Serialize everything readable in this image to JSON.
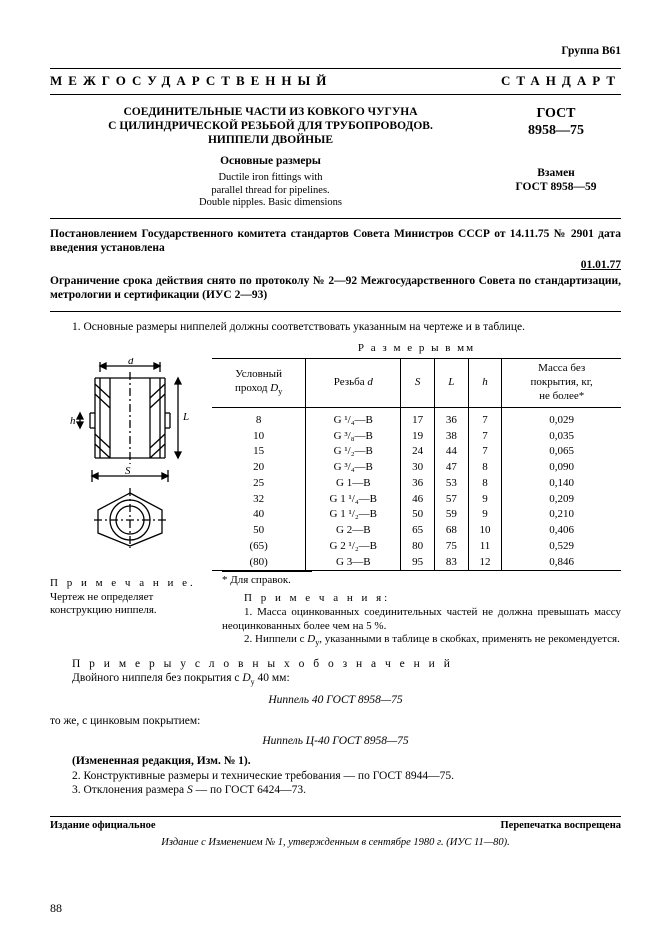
{
  "header": {
    "group": "Группа В61"
  },
  "banner": {
    "left": "МЕЖГОСУДАРСТВЕННЫЙ",
    "right": "СТАНДАРТ"
  },
  "title": {
    "line1": "СОЕДИНИТЕЛЬНЫЕ ЧАСТИ ИЗ КОВКОГО ЧУГУНА",
    "line2": "С ЦИЛИНДРИЧЕСКОЙ РЕЗЬБОЙ ДЛЯ ТРУБОПРОВОДОВ.",
    "line3": "НИППЕЛИ ДВОЙНЫЕ",
    "sub": "Основные размеры",
    "en1": "Ductile iron fittings with",
    "en2": "parallel thread for pipelines.",
    "en3": "Double nipples. Basic dimensions"
  },
  "std": {
    "name": "ГОСТ",
    "num": "8958—75",
    "repl1": "Взамен",
    "repl2": "ГОСТ 8958—59"
  },
  "decree": {
    "p1": "Постановлением Государственного комитета стандартов Совета Министров СССР от 14.11.75 № 2901 дата введения установлена",
    "date": "01.01.77",
    "p2": "Ограничение срока действия снято по протоколу № 2—92 Межгосударственного Совета по стандартизации, метрологии и сертификации (ИУС 2—93)"
  },
  "body": {
    "p1": "1. Основные размеры ниппелей должны соответствовать указанным на чертеже и в таблице."
  },
  "table": {
    "caption": "Р а з м е р ы  в  мм",
    "head": {
      "c1a": "Условный",
      "c1b": "проход",
      "c1v": "D",
      "c1vs": "y",
      "c2a": "Резьба",
      "c2v": "d",
      "c3": "S",
      "c4": "L",
      "c5": "h",
      "c6a": "Масса без",
      "c6b": "покрытия, кг,",
      "c6c": "не более*"
    },
    "rows": [
      {
        "dy": "8",
        "d": "G ¹/₄—В",
        "s": "17",
        "l": "36",
        "h": "7",
        "m": "0,029"
      },
      {
        "dy": "10",
        "d": "G ³/₈—В",
        "s": "19",
        "l": "38",
        "h": "7",
        "m": "0,035"
      },
      {
        "dy": "15",
        "d": "G ¹/₂—В",
        "s": "24",
        "l": "44",
        "h": "7",
        "m": "0,065"
      },
      {
        "dy": "20",
        "d": "G ³/₄—В",
        "s": "30",
        "l": "47",
        "h": "8",
        "m": "0,090"
      },
      {
        "dy": "25",
        "d": "G 1—В",
        "s": "36",
        "l": "53",
        "h": "8",
        "m": "0,140"
      },
      {
        "dy": "32",
        "d": "G 1 ¹/₄—В",
        "s": "46",
        "l": "57",
        "h": "9",
        "m": "0,209"
      },
      {
        "dy": "40",
        "d": "G 1 ¹/₂—В",
        "s": "50",
        "l": "59",
        "h": "9",
        "m": "0,210"
      },
      {
        "dy": "50",
        "d": "G 2—В",
        "s": "65",
        "l": "68",
        "h": "10",
        "m": "0,406"
      },
      {
        "dy": "(65)",
        "d": "G 2 ¹/₂—В",
        "s": "80",
        "l": "75",
        "h": "11",
        "m": "0,529"
      },
      {
        "dy": "(80)",
        "d": "G 3—В",
        "s": "95",
        "l": "83",
        "h": "12",
        "m": "0,846"
      }
    ],
    "star": "* Для справок."
  },
  "fig": {
    "d": "d",
    "s": "S",
    "l": "L",
    "h": "h"
  },
  "fignote": {
    "lead": "П р и м е ч а н и е.",
    "text": " Чертеж не определяет конструкцию ниппеля."
  },
  "tnotes": {
    "lead": "П р и м е ч а н и я:",
    "n1": "1. Масса оцинкованных соединительных частей не должна превышать массу неоцинкованных более чем на 5 %.",
    "n2a": "2. Ниппели с ",
    "n2v": "D",
    "n2vs": "y",
    "n2b": ", указанными в таблице в скобках, применять не рекомендуется."
  },
  "examples": {
    "lead": "П р и м е р ы   у с л о в н ы х   о б о з н а ч е н и й",
    "l1a": "Двойного ниппеля без покрытия с ",
    "l1v": "D",
    "l1vs": "y",
    "l1b": " 40 мм:",
    "ex1": "Ниппель 40 ГОСТ 8958—75",
    "l2": "то же, с цинковым покрытием:",
    "ex2": "Ниппель Ц-40 ГОСТ 8958—75"
  },
  "tail": {
    "izm": "(Измененная редакция, Изм. № 1).",
    "p2": "2. Конструктивные размеры и технические требования — по ГОСТ 8944—75.",
    "p3": "3. Отклонения размера ",
    "p3v": "S",
    "p3b": " — по ГОСТ 6424—73."
  },
  "footer": {
    "left": "Издание официальное",
    "right": "Перепечатка воспрещена",
    "ed": "Издание с Изменением № 1, утвержденным в сентябре 1980 г. (ИУС 11—80).",
    "page": "88"
  }
}
